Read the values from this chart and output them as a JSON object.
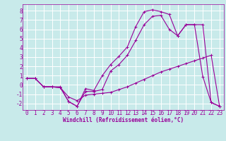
{
  "xlabel": "Windchill (Refroidissement éolien,°C)",
  "background_color": "#c8eaea",
  "grid_color": "#ffffff",
  "line_color": "#990099",
  "xlim": [
    -0.5,
    23.5
  ],
  "ylim": [
    -2.7,
    8.7
  ],
  "xticks": [
    0,
    1,
    2,
    3,
    4,
    5,
    6,
    7,
    8,
    9,
    10,
    11,
    12,
    13,
    14,
    15,
    16,
    17,
    18,
    19,
    20,
    21,
    22,
    23
  ],
  "yticks": [
    -2,
    -1,
    0,
    1,
    2,
    3,
    4,
    5,
    6,
    7,
    8
  ],
  "series1_x": [
    0,
    1,
    2,
    3,
    4,
    5,
    6,
    7,
    8,
    9,
    10,
    11,
    12,
    13,
    14,
    15,
    16,
    17,
    18,
    19,
    20,
    21,
    22,
    23
  ],
  "series1_y": [
    0.7,
    0.7,
    -0.2,
    -0.2,
    -0.2,
    -1.8,
    -2.3,
    -0.4,
    -0.6,
    1.0,
    2.2,
    3.1,
    4.1,
    6.3,
    7.9,
    8.1,
    7.9,
    7.6,
    5.3,
    6.5,
    6.5,
    0.9,
    -1.9,
    -2.3
  ],
  "series2_x": [
    0,
    1,
    2,
    3,
    4,
    5,
    6,
    7,
    8,
    9,
    10,
    11,
    12,
    13,
    14,
    15,
    16,
    17,
    18,
    19,
    20,
    21,
    22,
    23
  ],
  "series2_y": [
    0.7,
    0.7,
    -0.2,
    -0.2,
    -0.3,
    -1.3,
    -1.7,
    -1.1,
    -1.0,
    -0.9,
    -0.8,
    -0.5,
    -0.2,
    0.2,
    0.6,
    1.0,
    1.4,
    1.7,
    2.0,
    2.3,
    2.6,
    2.9,
    3.2,
    -2.3
  ],
  "series3_x": [
    0,
    1,
    2,
    3,
    4,
    5,
    6,
    7,
    8,
    9,
    10,
    11,
    12,
    13,
    14,
    15,
    16,
    17,
    18,
    19,
    20,
    21,
    22,
    23
  ],
  "series3_y": [
    0.7,
    0.7,
    -0.2,
    -0.2,
    -0.3,
    -1.8,
    -2.3,
    -0.7,
    -0.7,
    -0.5,
    1.5,
    2.2,
    3.2,
    4.8,
    6.5,
    7.4,
    7.5,
    6.0,
    5.3,
    6.5,
    6.5,
    6.5,
    -1.9,
    -2.3
  ],
  "xlabel_fontsize": 5.5,
  "tick_fontsize": 5.5,
  "linewidth": 0.8,
  "markersize": 2.5
}
